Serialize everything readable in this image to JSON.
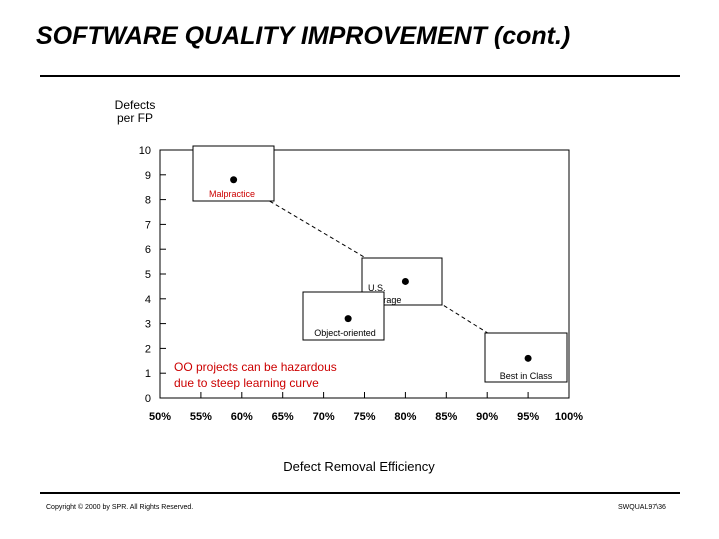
{
  "slide": {
    "title": "SOFTWARE QUALITY IMPROVEMENT (cont.)",
    "copyright": "Copyright © 2000 by SPR. All Rights Reserved.",
    "slide_id": "SWQUAL97\\36"
  },
  "chart_data": {
    "type": "scatter",
    "ylabel": [
      "Defects",
      "per FP"
    ],
    "xlabel": "Defect Removal Efficiency",
    "y_ticks": [
      "10",
      "9",
      "8",
      "7",
      "6",
      "5",
      "4",
      "3",
      "2",
      "1",
      "0"
    ],
    "x_ticks": [
      "50%",
      "55%",
      "60%",
      "65%",
      "70%",
      "75%",
      "80%",
      "85%",
      "90%",
      "95%",
      "100%"
    ],
    "ylim": [
      0,
      10
    ],
    "xlim": [
      50,
      100
    ],
    "grid": false,
    "points": [
      {
        "label": "Malpractice",
        "x": 59,
        "y": 8.8,
        "label_color": "#cc0000"
      },
      {
        "label": "U.S. Average",
        "x": 80,
        "y": 4.7,
        "label_color": "#000000"
      },
      {
        "label": "Object-oriented",
        "x": 73,
        "y": 3.2,
        "label_color": "#000000"
      },
      {
        "label": "Best in Class",
        "x": 95,
        "y": 1.6,
        "label_color": "#000000"
      }
    ],
    "trend_line_points": [
      [
        59,
        8.8
      ],
      [
        80,
        4.7
      ],
      [
        95,
        1.6
      ]
    ],
    "annotation": {
      "lines": [
        "OO projects can be hazardous",
        "due to steep learning curve"
      ],
      "color": "#cc0000"
    }
  }
}
